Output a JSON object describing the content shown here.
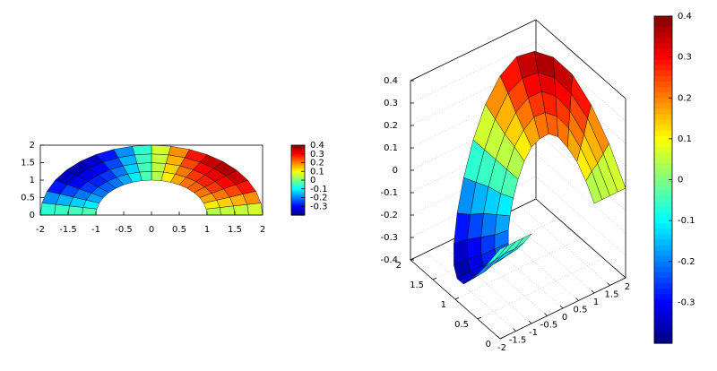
{
  "chart_data": [
    {
      "type": "map2d",
      "r": [
        1,
        1.25,
        1.5,
        1.75,
        2
      ],
      "theta": [
        0,
        10,
        20,
        30,
        40,
        50,
        60,
        70,
        80,
        90,
        100,
        110,
        120,
        130,
        140,
        150,
        160,
        170,
        180
      ],
      "z": [
        [
          0,
          0.07,
          0.13,
          0.17,
          0.2,
          0.2,
          0.17,
          0.13,
          0.07,
          0,
          -0.07,
          -0.13,
          -0.17,
          -0.2,
          -0.2,
          -0.17,
          -0.13,
          -0.07,
          0
        ],
        [
          0,
          0.09,
          0.16,
          0.22,
          0.25,
          0.25,
          0.22,
          0.16,
          0.09,
          0,
          -0.09,
          -0.16,
          -0.22,
          -0.25,
          -0.25,
          -0.22,
          -0.16,
          -0.09,
          0
        ],
        [
          0,
          0.1,
          0.19,
          0.26,
          0.3,
          0.3,
          0.26,
          0.19,
          0.1,
          0,
          -0.1,
          -0.19,
          -0.26,
          -0.3,
          -0.3,
          -0.26,
          -0.19,
          -0.1,
          0
        ],
        [
          0,
          0.12,
          0.23,
          0.3,
          0.34,
          0.34,
          0.3,
          0.23,
          0.12,
          0,
          -0.12,
          -0.23,
          -0.3,
          -0.34,
          -0.34,
          -0.3,
          -0.23,
          -0.12,
          0
        ],
        [
          0,
          0.14,
          0.26,
          0.35,
          0.39,
          0.39,
          0.35,
          0.26,
          0.14,
          0,
          -0.14,
          -0.26,
          -0.35,
          -0.39,
          -0.39,
          -0.35,
          -0.26,
          -0.14,
          0
        ]
      ],
      "xlim": [
        -2,
        2
      ],
      "xticks": [
        -2,
        -1.5,
        -1,
        -0.5,
        0,
        0.5,
        1,
        1.5,
        2
      ],
      "ylim": [
        0,
        2
      ],
      "yticks": [
        0,
        0.5,
        1,
        1.5,
        2
      ],
      "cblim": [
        -0.4,
        0.4
      ],
      "cbticks": [
        0.4,
        0.3,
        0.2,
        0.1,
        0,
        -0.1,
        -0.2,
        -0.3
      ]
    },
    {
      "type": "surface3d",
      "r": [
        1,
        1.25,
        1.5,
        1.75,
        2
      ],
      "theta": [
        0,
        10,
        20,
        30,
        40,
        50,
        60,
        70,
        80,
        90,
        100,
        110,
        120,
        130,
        140,
        150,
        160,
        170,
        180
      ],
      "z": [
        [
          0,
          0.07,
          0.13,
          0.17,
          0.2,
          0.2,
          0.17,
          0.13,
          0.07,
          0,
          -0.07,
          -0.13,
          -0.17,
          -0.2,
          -0.2,
          -0.17,
          -0.13,
          -0.07,
          0
        ],
        [
          0,
          0.09,
          0.16,
          0.22,
          0.25,
          0.25,
          0.22,
          0.16,
          0.09,
          0,
          -0.09,
          -0.16,
          -0.22,
          -0.25,
          -0.25,
          -0.22,
          -0.16,
          -0.09,
          0
        ],
        [
          0,
          0.1,
          0.19,
          0.26,
          0.3,
          0.3,
          0.26,
          0.19,
          0.1,
          0,
          -0.1,
          -0.19,
          -0.26,
          -0.3,
          -0.3,
          -0.26,
          -0.19,
          -0.1,
          0
        ],
        [
          0,
          0.12,
          0.23,
          0.3,
          0.34,
          0.34,
          0.3,
          0.23,
          0.12,
          0,
          -0.12,
          -0.23,
          -0.3,
          -0.34,
          -0.34,
          -0.3,
          -0.23,
          -0.12,
          0
        ],
        [
          0,
          0.14,
          0.26,
          0.35,
          0.39,
          0.39,
          0.35,
          0.26,
          0.14,
          0,
          -0.14,
          -0.26,
          -0.35,
          -0.39,
          -0.39,
          -0.35,
          -0.26,
          -0.14,
          0
        ]
      ],
      "xlim": [
        -2,
        2
      ],
      "xticks": [
        -2,
        -1.5,
        -1,
        -0.5,
        0,
        0.5,
        1,
        1.5,
        2
      ],
      "ylim": [
        0,
        2
      ],
      "yticks": [
        0,
        0.5,
        1,
        1.5,
        2
      ],
      "zlim": [
        -0.4,
        0.4
      ],
      "zticks": [
        -0.4,
        -0.3,
        -0.2,
        -0.1,
        0,
        0.1,
        0.2,
        0.3,
        0.4
      ],
      "cblim": [
        -0.4,
        0.4
      ],
      "cbticks": [
        0.4,
        0.3,
        0.2,
        0.1,
        0,
        -0.1,
        -0.2,
        -0.3
      ],
      "grid": true
    }
  ]
}
